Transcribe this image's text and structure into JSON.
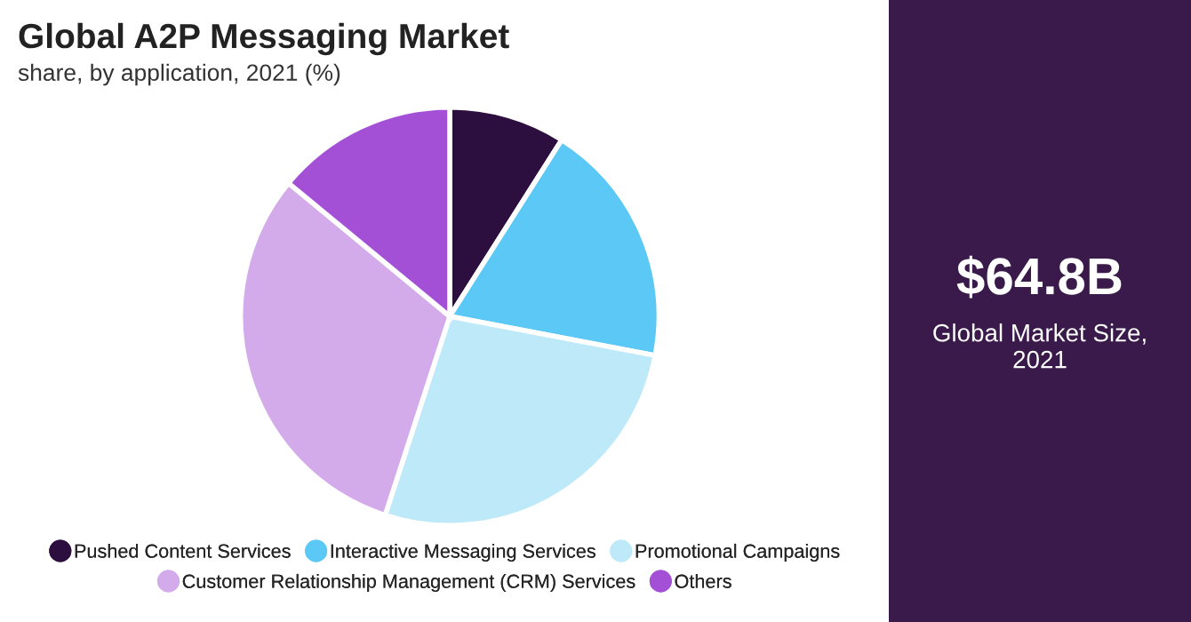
{
  "chart_data": {
    "type": "pie",
    "title": "Global A2P Messaging Market",
    "subtitle": "share, by application, 2021 (%)",
    "categories": [
      "Pushed Content Services",
      "Interactive Messaging Services",
      "Promotional Campaigns",
      "Customer Relationship Management (CRM) Services",
      "Others"
    ],
    "values": [
      9,
      19,
      27,
      31,
      14
    ],
    "colors": [
      "#2d0f3f",
      "#5bc8f5",
      "#bde9f9",
      "#d3aaea",
      "#a450d6"
    ],
    "annotations": [
      "$64.8B",
      "Global Market Size,\n2021"
    ],
    "legend": "bottom"
  }
}
